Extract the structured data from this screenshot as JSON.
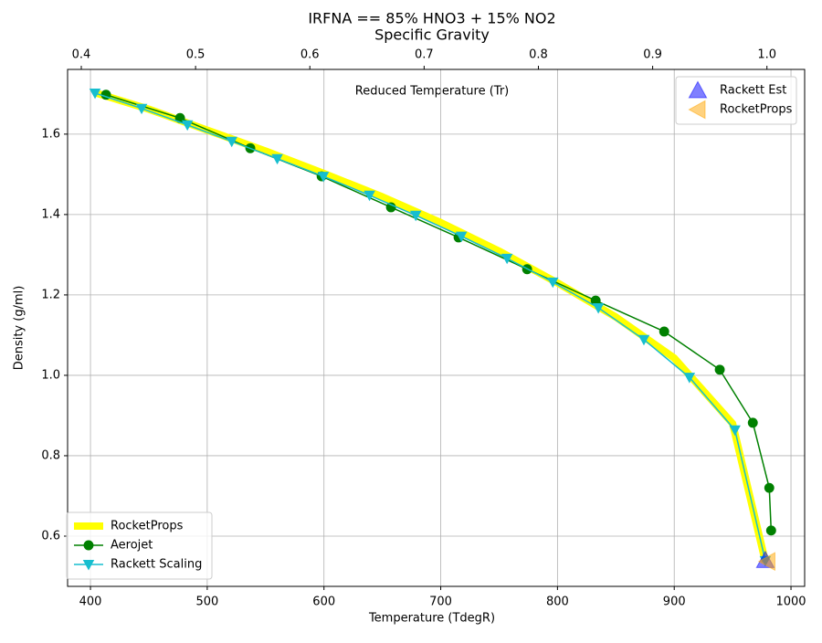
{
  "chart_data": {
    "type": "line",
    "title": "IRFNA == 85% HNO3 + 15% NO2",
    "subtitle": "Specific Gravity",
    "x_label": "Temperature (TdegR)",
    "y_label": "Density (g/ml)",
    "x2_label": "Reduced Temperature (Tr)",
    "xlim": [
      380.4,
      1011.7
    ],
    "xticks": [
      400,
      500,
      600,
      700,
      800,
      900,
      1000
    ],
    "ylim": [
      0.475,
      1.761
    ],
    "yticks": [
      0.6,
      0.8,
      {
        "value": 1.0,
        "label": "1.0"
      },
      1.2,
      1.4,
      1.6
    ],
    "x2lim": [
      0.388,
      1.033
    ],
    "x2ticks": [
      0.4,
      0.5,
      0.6,
      0.7,
      0.8,
      0.9,
      {
        "value": 1.0,
        "label": "1.0"
      }
    ],
    "grid": true,
    "series": [
      {
        "name": "RocketProps",
        "color": "#ffff00",
        "linewidth": 8,
        "marker": "none",
        "legend": "lower left",
        "x": [
          404,
          450,
          500,
          550,
          600,
          650,
          700,
          750,
          800,
          850,
          900,
          950,
          978
        ],
        "values": [
          1.703,
          1.662,
          1.61,
          1.558,
          1.502,
          1.444,
          1.38,
          1.309,
          1.23,
          1.145,
          1.043,
          0.88,
          0.537
        ]
      },
      {
        "name": "Aerojet",
        "color": "#008000",
        "linewidth": 1.5,
        "marker": "circle",
        "legend": "lower left",
        "x": [
          413.3,
          476.7,
          536.9,
          598,
          657.4,
          715.3,
          774,
          832.7,
          891.4,
          939,
          967.3,
          981.4,
          983
        ],
        "values": [
          1.698,
          1.64,
          1.565,
          1.495,
          1.418,
          1.343,
          1.264,
          1.186,
          1.109,
          1.014,
          0.882,
          0.72,
          0.614
        ]
      },
      {
        "name": "Rackett Scaling",
        "color": "#17becf",
        "linewidth": 1.5,
        "marker": "triangle-down",
        "legend": "lower left",
        "x": [
          403.9,
          443.8,
          483,
          521,
          560,
          599.5,
          639,
          678.6,
          717.7,
          756.8,
          796,
          835,
          874,
          913,
          952,
          978
        ],
        "values": [
          1.702,
          1.664,
          1.623,
          1.582,
          1.539,
          1.495,
          1.448,
          1.398,
          1.346,
          1.291,
          1.232,
          1.168,
          1.089,
          0.995,
          0.864,
          0.539
        ]
      },
      {
        "name": "Rackett Est",
        "color": "#0000ff",
        "linewidth": 0,
        "marker": "triangle-up",
        "legend": "upper right",
        "x": [
          978
        ],
        "values": [
          0.54
        ]
      },
      {
        "name": "RocketProps",
        "color": "#ffa500",
        "linewidth": 0,
        "marker": "triangle-left",
        "legend": "upper right",
        "x": [
          980
        ],
        "values": [
          0.537
        ]
      }
    ]
  }
}
